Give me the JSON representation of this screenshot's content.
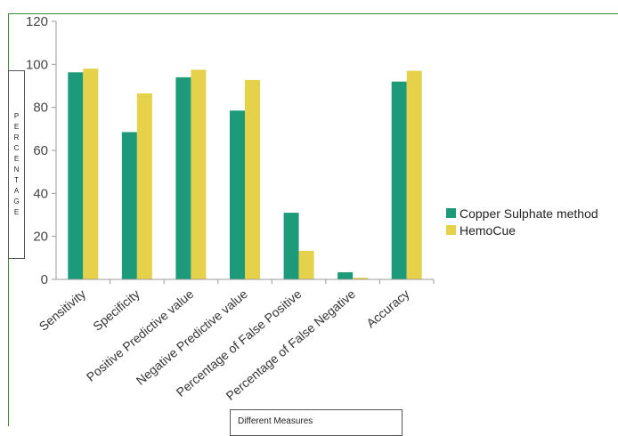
{
  "chart_data": {
    "type": "bar",
    "categories": [
      "Sensitivity",
      "Specificity",
      "Positive Predictive value",
      "Negative Predictive value",
      "Percentage of False Positive",
      "Percentage of False Negative",
      "Accuracy"
    ],
    "series": [
      {
        "name": "Copper Sulphate method",
        "color": "#1d9a7a",
        "values": [
          96.3,
          68.5,
          94.0,
          78.5,
          31.0,
          3.3,
          92.0
        ]
      },
      {
        "name": "HemoCue",
        "color": "#e6d24a",
        "values": [
          98.0,
          86.5,
          97.5,
          92.7,
          13.3,
          0.8,
          97.0
        ]
      }
    ],
    "ylim": [
      0,
      120
    ],
    "yticks": [
      "0",
      "20",
      "40",
      "60",
      "80",
      "100",
      "120"
    ],
    "ylabel_letters": [
      "P",
      "E",
      "R",
      "C",
      "E",
      "N",
      "T",
      "A",
      "G",
      "E"
    ],
    "xlabel": "Different Measures",
    "grid": false,
    "legend_position": "right"
  }
}
